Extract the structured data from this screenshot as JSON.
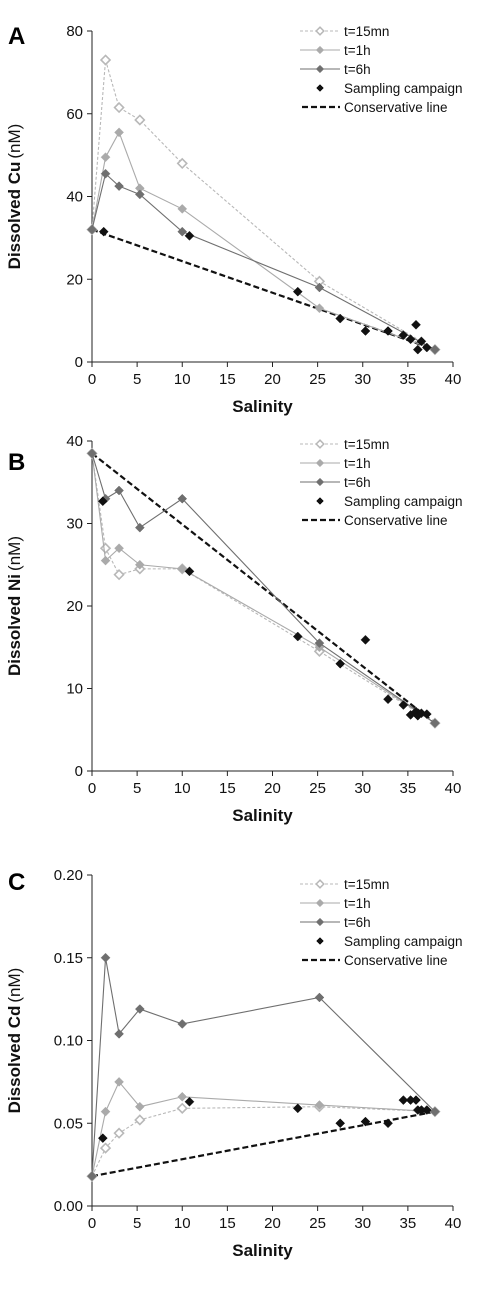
{
  "chart_data": [
    {
      "type": "line",
      "panel_letter": "A",
      "ylabel_bold": "Dissolved Cu",
      "ylabel_unit": "(nM)",
      "xlabel": "Salinity",
      "xlim": [
        0,
        40
      ],
      "ylim": [
        0,
        80
      ],
      "xticks": [
        "0",
        "5",
        "10",
        "15",
        "20",
        "25",
        "30",
        "35",
        "40"
      ],
      "yticks": [
        "0",
        "20",
        "40",
        "60",
        "80"
      ],
      "grid": false,
      "legend_position": "top-right",
      "series": [
        {
          "name": "t=15mn",
          "style": "dashed-open",
          "color": "#b8b8b8",
          "x": [
            0,
            1.5,
            3,
            5.3,
            10,
            25.2,
            38
          ],
          "y": [
            32,
            73,
            61.5,
            58.5,
            48,
            19.5,
            3
          ]
        },
        {
          "name": "t=1h",
          "style": "solid",
          "color": "#aaaaaa",
          "x": [
            0,
            1.5,
            3,
            5.3,
            10,
            25.2,
            38
          ],
          "y": [
            32,
            49.5,
            55.5,
            42,
            37,
            13,
            3
          ]
        },
        {
          "name": "t=6h",
          "style": "solid",
          "color": "#6f6f6f",
          "x": [
            0,
            1.5,
            3,
            5.3,
            10,
            25.2,
            38
          ],
          "y": [
            32,
            45.5,
            42.5,
            40.5,
            31.5,
            18,
            3
          ]
        },
        {
          "name": "Sampling campaign",
          "style": "markers",
          "color": "#111111",
          "x": [
            1.3,
            10.8,
            22.8,
            27.5,
            30.3,
            32.8,
            34.5,
            35.3,
            35.9,
            36.1,
            36.5,
            37.1
          ],
          "y": [
            31.5,
            30.5,
            17,
            10.5,
            7.5,
            7.5,
            6.5,
            5.5,
            9,
            3,
            5,
            3.5
          ]
        },
        {
          "name": "Conservative line",
          "style": "dashed-line",
          "color": "#111111",
          "x": [
            0,
            38
          ],
          "y": [
            32,
            3
          ]
        }
      ]
    },
    {
      "type": "line",
      "panel_letter": "B",
      "ylabel_bold": "Dissolved Ni",
      "ylabel_unit": "(nM)",
      "xlabel": "Salinity",
      "xlim": [
        0,
        40
      ],
      "ylim": [
        0,
        40
      ],
      "xticks": [
        "0",
        "5",
        "10",
        "15",
        "20",
        "25",
        "30",
        "35",
        "40"
      ],
      "yticks": [
        "0",
        "10",
        "20",
        "30",
        "40"
      ],
      "grid": false,
      "legend_position": "top-right",
      "series": [
        {
          "name": "t=15mn",
          "style": "dashed-open",
          "color": "#b8b8b8",
          "x": [
            0,
            1.5,
            3,
            5.3,
            10,
            25.2,
            38
          ],
          "y": [
            38.5,
            27,
            23.8,
            24.5,
            24.5,
            14.5,
            5.8
          ]
        },
        {
          "name": "t=1h",
          "style": "solid",
          "color": "#aaaaaa",
          "x": [
            0,
            1.5,
            3,
            5.3,
            10,
            25.2,
            38
          ],
          "y": [
            38.5,
            25.5,
            27,
            25,
            24.5,
            15,
            5.8
          ]
        },
        {
          "name": "t=6h",
          "style": "solid",
          "color": "#6f6f6f",
          "x": [
            0,
            1.5,
            3,
            5.3,
            10,
            25.2,
            38
          ],
          "y": [
            38.5,
            33,
            34,
            29.5,
            33,
            15.5,
            5.8
          ]
        },
        {
          "name": "Sampling campaign",
          "style": "markers",
          "color": "#111111",
          "x": [
            1.2,
            10.8,
            22.8,
            27.5,
            30.3,
            32.8,
            34.5,
            35.3,
            35.9,
            36.1,
            36.5,
            37.1
          ],
          "y": [
            32.7,
            24.2,
            16.3,
            13,
            15.9,
            8.7,
            8,
            6.8,
            7.2,
            6.7,
            7,
            6.9
          ]
        },
        {
          "name": "Conservative line",
          "style": "dashed-line",
          "color": "#111111",
          "x": [
            0,
            38
          ],
          "y": [
            38.5,
            5.8
          ]
        }
      ]
    },
    {
      "type": "line",
      "panel_letter": "C",
      "ylabel_bold": "Dissolved Cd",
      "ylabel_unit": "(nM)",
      "xlabel": "Salinity",
      "xlim": [
        0,
        40
      ],
      "ylim": [
        0,
        0.2
      ],
      "xticks": [
        "0",
        "5",
        "10",
        "15",
        "20",
        "25",
        "30",
        "35",
        "40"
      ],
      "yticks": [
        "0.00",
        "0.05",
        "0.10",
        "0.15",
        "0.20"
      ],
      "grid": false,
      "legend_position": "top-right",
      "series": [
        {
          "name": "t=15mn",
          "style": "dashed-open",
          "color": "#b8b8b8",
          "x": [
            0,
            1.5,
            3,
            5.3,
            10,
            25.2,
            38
          ],
          "y": [
            0.018,
            0.035,
            0.044,
            0.052,
            0.059,
            0.06,
            0.057
          ]
        },
        {
          "name": "t=1h",
          "style": "solid",
          "color": "#aaaaaa",
          "x": [
            0,
            1.5,
            3,
            5.3,
            10,
            25.2,
            38
          ],
          "y": [
            0.018,
            0.057,
            0.075,
            0.06,
            0.066,
            0.061,
            0.057
          ]
        },
        {
          "name": "t=6h",
          "style": "solid",
          "color": "#6f6f6f",
          "x": [
            0,
            1.5,
            3,
            5.3,
            10,
            25.2,
            38
          ],
          "y": [
            0.018,
            0.15,
            0.104,
            0.119,
            0.11,
            0.126,
            0.057
          ]
        },
        {
          "name": "Sampling campaign",
          "style": "markers",
          "color": "#111111",
          "x": [
            1.2,
            10.8,
            22.8,
            27.5,
            30.3,
            32.8,
            34.5,
            35.3,
            35.9,
            36.1,
            36.5,
            37.1
          ],
          "y": [
            0.041,
            0.063,
            0.059,
            0.05,
            0.051,
            0.05,
            0.064,
            0.064,
            0.064,
            0.058,
            0.058,
            0.058
          ]
        },
        {
          "name": "Conservative line",
          "style": "dashed-line",
          "color": "#111111",
          "x": [
            0,
            38
          ],
          "y": [
            0.018,
            0.057
          ]
        }
      ]
    }
  ]
}
